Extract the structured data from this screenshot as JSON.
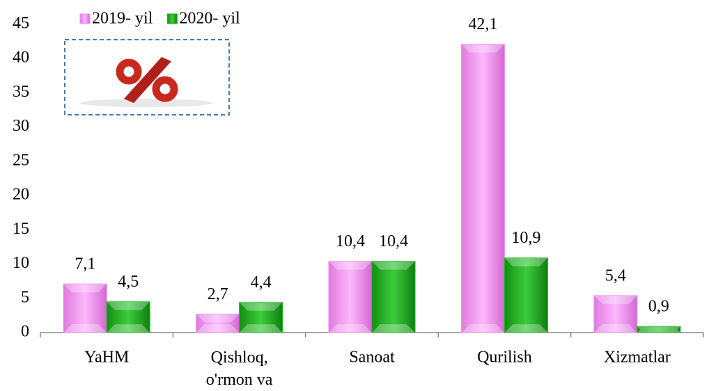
{
  "chart_data": {
    "type": "bar",
    "categories": [
      "YaHM",
      "Qishloq, o'rmon va",
      "Sanoat",
      "Qurilish",
      "Xizmatlar"
    ],
    "series": [
      {
        "name": "2019- yil",
        "color": "#f08ef0",
        "values": [
          7.1,
          2.7,
          10.4,
          42.1,
          5.4
        ],
        "value_labels": [
          "7,1",
          "2,7",
          "10,4",
          "42,1",
          "5,4"
        ]
      },
      {
        "name": "2020- yil",
        "color": "#22b322",
        "values": [
          4.5,
          4.4,
          10.4,
          10.9,
          0.9
        ],
        "value_labels": [
          "4,5",
          "4,4",
          "10,4",
          "10,9",
          "0,9"
        ]
      }
    ],
    "ylim": [
      0,
      45
    ],
    "yticks": [
      0,
      5,
      10,
      15,
      20,
      25,
      30,
      35,
      40,
      45
    ],
    "grid": false,
    "legend": "top"
  }
}
